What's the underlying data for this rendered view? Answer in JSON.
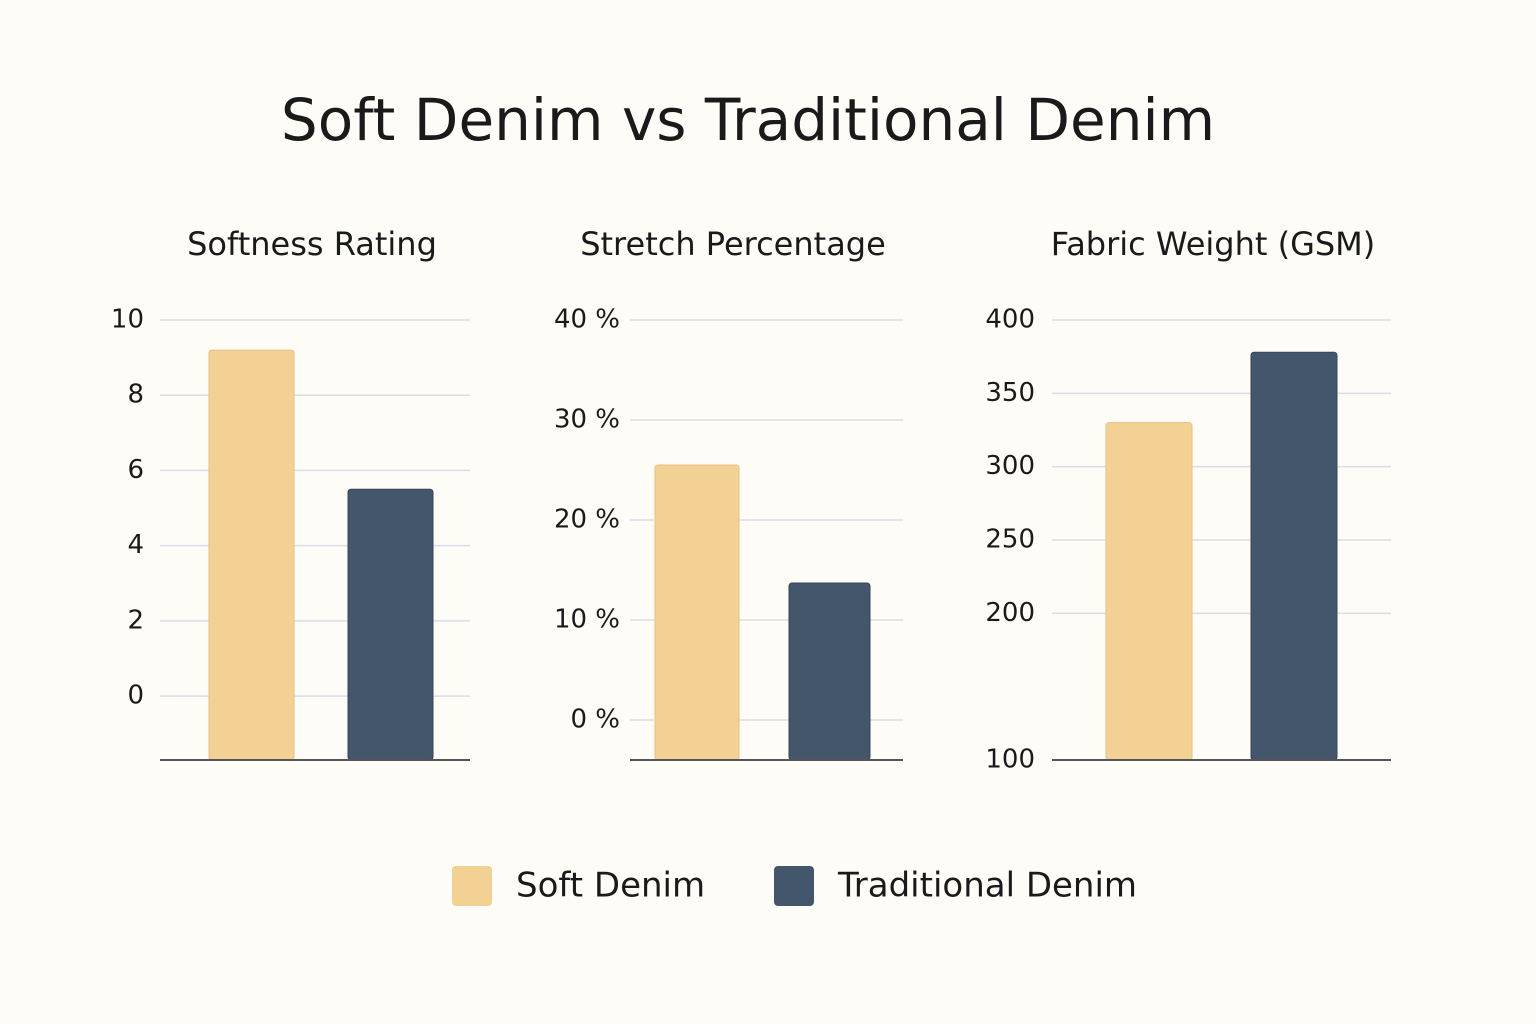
{
  "title": "Soft Denim vs Traditional Denim",
  "chart_data": [
    {
      "type": "bar",
      "title": "Softness Rating",
      "series": [
        {
          "name": "Soft Denim",
          "color": "#f3d093",
          "values": [
            9.2
          ]
        },
        {
          "name": "Traditional Denim",
          "color": "#44566c",
          "values": [
            5.5
          ]
        }
      ],
      "ylim": [
        -1.7,
        10
      ],
      "yticks": [
        0,
        2,
        4,
        6,
        8,
        10
      ],
      "grid": true
    },
    {
      "type": "bar",
      "title": "Stretch Percentage",
      "series": [
        {
          "name": "Soft Denim",
          "color": "#f3d093",
          "values": [
            25.5
          ]
        },
        {
          "name": "Traditional Denim",
          "color": "#44566c",
          "values": [
            13.7
          ]
        }
      ],
      "ylim": [
        -4,
        40
      ],
      "yticks": [
        {
          "value": 0,
          "label": "0 %"
        },
        {
          "value": 10,
          "label": "10 %"
        },
        {
          "value": 20,
          "label": "20 %"
        },
        {
          "value": 30,
          "label": "30 %"
        },
        {
          "value": 40,
          "label": "40 %"
        }
      ],
      "grid": true
    },
    {
      "type": "bar",
      "title": "Fabric Weight (GSM)",
      "series": [
        {
          "name": "Soft Denim",
          "color": "#f3d093",
          "values": [
            330
          ]
        },
        {
          "name": "Traditional Denim",
          "color": "#44566c",
          "values": [
            378
          ]
        }
      ],
      "ylim": [
        100,
        400
      ],
      "yticks": [
        100,
        200,
        250,
        300,
        350,
        400
      ],
      "grid": true
    }
  ]
}
